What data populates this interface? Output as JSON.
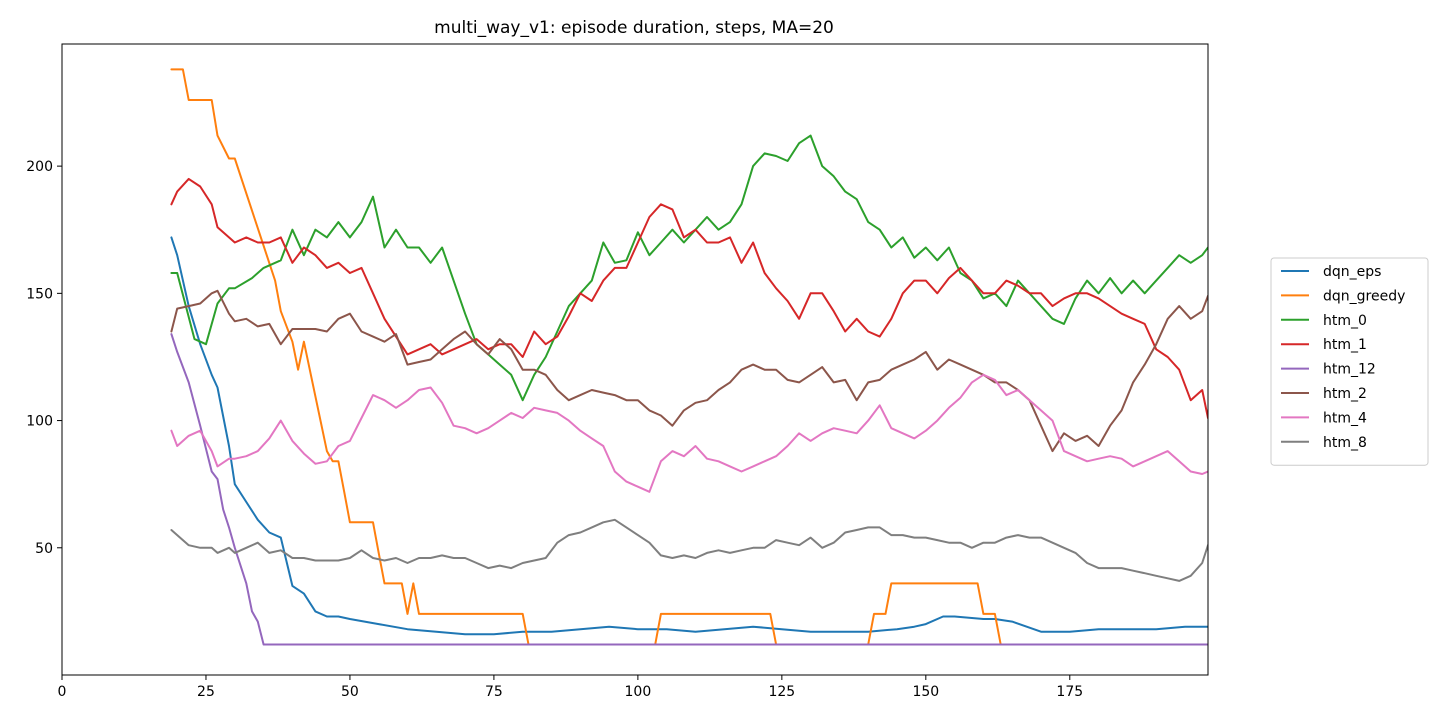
{
  "chart_data": {
    "type": "line",
    "title": "multi_way_v1: episode duration, steps, MA=20",
    "xlabel": "",
    "ylabel": "",
    "xlim": [
      0,
      199
    ],
    "ylim": [
      0,
      248
    ],
    "x_ticks": [
      0,
      25,
      50,
      75,
      100,
      125,
      150,
      175
    ],
    "y_ticks": [
      50,
      100,
      150,
      200
    ],
    "grid": false,
    "legend_position": "right",
    "series": [
      {
        "name": "dqn_eps",
        "color": "#1f77b4",
        "x": [
          19,
          20,
          22,
          24,
          26,
          27,
          29,
          30,
          32,
          34,
          36,
          38,
          40,
          42,
          44,
          46,
          48,
          50,
          55,
          60,
          65,
          70,
          75,
          80,
          85,
          90,
          95,
          100,
          105,
          110,
          115,
          120,
          125,
          130,
          135,
          140,
          145,
          148,
          150,
          153,
          155,
          160,
          162,
          165,
          170,
          175,
          180,
          185,
          190,
          195,
          199
        ],
        "y": [
          172,
          165,
          145,
          130,
          118,
          113,
          90,
          75,
          68,
          61,
          56,
          54,
          35,
          32,
          25,
          23,
          23,
          22,
          20,
          18,
          17,
          16,
          16,
          17,
          17,
          18,
          19,
          18,
          18,
          17,
          18,
          19,
          18,
          17,
          17,
          17,
          18,
          19,
          20,
          23,
          23,
          22,
          22,
          21,
          17,
          17,
          18,
          18,
          18,
          19,
          19
        ]
      },
      {
        "name": "dqn_greedy",
        "color": "#ff7f0e",
        "x": [
          19,
          21,
          22,
          26,
          27,
          29,
          30,
          37,
          38,
          40,
          41,
          42,
          46,
          47,
          48,
          49,
          50,
          54,
          55,
          56,
          59,
          60,
          61,
          62,
          80,
          81,
          103,
          104,
          123,
          124,
          140,
          141,
          143,
          144,
          159,
          160,
          162,
          163,
          199
        ],
        "y": [
          238,
          238,
          226,
          226,
          212,
          203,
          203,
          155,
          143,
          131,
          120,
          131,
          88,
          84,
          84,
          72,
          60,
          60,
          48,
          36,
          36,
          24,
          36,
          24,
          24,
          12,
          12,
          24,
          24,
          12,
          12,
          24,
          24,
          36,
          36,
          24,
          24,
          12,
          12
        ]
      },
      {
        "name": "htm_0",
        "color": "#2ca02c",
        "x": [
          19,
          20,
          23,
          25,
          27,
          29,
          30,
          33,
          35,
          38,
          40,
          42,
          44,
          46,
          48,
          50,
          52,
          54,
          56,
          58,
          60,
          62,
          64,
          66,
          70,
          72,
          74,
          76,
          78,
          80,
          82,
          84,
          86,
          88,
          90,
          92,
          94,
          96,
          98,
          100,
          102,
          104,
          106,
          108,
          110,
          112,
          114,
          116,
          118,
          120,
          122,
          124,
          126,
          128,
          130,
          132,
          134,
          136,
          138,
          140,
          142,
          144,
          146,
          148,
          150,
          152,
          154,
          156,
          158,
          160,
          162,
          164,
          166,
          168,
          172,
          174,
          176,
          178,
          180,
          182,
          184,
          186,
          188,
          190,
          192,
          194,
          196,
          198,
          199
        ],
        "y": [
          158,
          158,
          132,
          130,
          146,
          152,
          152,
          156,
          160,
          163,
          175,
          165,
          175,
          172,
          178,
          172,
          178,
          188,
          168,
          175,
          168,
          168,
          162,
          168,
          142,
          130,
          126,
          122,
          118,
          108,
          118,
          125,
          135,
          145,
          150,
          155,
          170,
          162,
          163,
          174,
          165,
          170,
          175,
          170,
          175,
          180,
          175,
          178,
          185,
          200,
          205,
          204,
          202,
          209,
          212,
          200,
          196,
          190,
          187,
          178,
          175,
          168,
          172,
          164,
          168,
          163,
          168,
          158,
          155,
          148,
          150,
          145,
          155,
          150,
          140,
          138,
          148,
          155,
          150,
          156,
          150,
          155,
          150,
          155,
          160,
          165,
          162,
          165,
          168
        ]
      },
      {
        "name": "htm_1",
        "color": "#d62728",
        "x": [
          19,
          20,
          22,
          24,
          26,
          27,
          29,
          30,
          32,
          34,
          36,
          38,
          40,
          42,
          44,
          46,
          48,
          50,
          52,
          54,
          56,
          58,
          60,
          62,
          64,
          66,
          68,
          70,
          72,
          74,
          76,
          78,
          80,
          82,
          84,
          86,
          88,
          90,
          92,
          94,
          96,
          98,
          100,
          102,
          104,
          106,
          108,
          110,
          112,
          114,
          116,
          118,
          120,
          122,
          124,
          126,
          128,
          130,
          132,
          134,
          136,
          138,
          140,
          142,
          144,
          146,
          148,
          150,
          152,
          154,
          156,
          158,
          160,
          162,
          164,
          166,
          168,
          170,
          172,
          174,
          176,
          178,
          180,
          182,
          184,
          186,
          188,
          190,
          192,
          194,
          196,
          198,
          199
        ],
        "y": [
          185,
          190,
          195,
          192,
          185,
          176,
          172,
          170,
          172,
          170,
          170,
          172,
          162,
          168,
          165,
          160,
          162,
          158,
          160,
          150,
          140,
          133,
          126,
          128,
          130,
          126,
          128,
          130,
          132,
          128,
          130,
          130,
          125,
          135,
          130,
          133,
          141,
          150,
          147,
          155,
          160,
          160,
          170,
          180,
          185,
          183,
          172,
          175,
          170,
          170,
          172,
          162,
          170,
          158,
          152,
          147,
          140,
          150,
          150,
          143,
          135,
          140,
          135,
          133,
          140,
          150,
          155,
          155,
          150,
          156,
          160,
          155,
          150,
          150,
          155,
          153,
          150,
          150,
          145,
          148,
          150,
          150,
          148,
          145,
          142,
          140,
          138,
          128,
          125,
          120,
          108,
          112,
          101
        ]
      },
      {
        "name": "htm_12",
        "color": "#9467bd",
        "x": [
          19,
          20,
          22,
          24,
          26,
          27,
          28,
          29,
          30,
          32,
          33,
          34,
          35,
          199
        ],
        "y": [
          134,
          127,
          115,
          98,
          80,
          77,
          65,
          58,
          50,
          36,
          25,
          21,
          12,
          12
        ]
      },
      {
        "name": "htm_2",
        "color": "#8c564b",
        "x": [
          19,
          20,
          22,
          24,
          26,
          27,
          29,
          30,
          32,
          34,
          36,
          38,
          40,
          42,
          44,
          46,
          48,
          50,
          52,
          54,
          56,
          58,
          60,
          62,
          64,
          66,
          68,
          70,
          72,
          74,
          76,
          78,
          80,
          82,
          84,
          86,
          88,
          90,
          92,
          94,
          96,
          98,
          100,
          102,
          104,
          106,
          108,
          110,
          112,
          114,
          116,
          118,
          120,
          122,
          124,
          126,
          128,
          130,
          132,
          134,
          136,
          138,
          140,
          142,
          144,
          146,
          148,
          150,
          152,
          154,
          156,
          158,
          160,
          162,
          164,
          166,
          168,
          170,
          172,
          174,
          176,
          178,
          180,
          182,
          184,
          186,
          188,
          190,
          192,
          194,
          196,
          198,
          199
        ],
        "y": [
          135,
          144,
          145,
          146,
          150,
          151,
          142,
          139,
          140,
          137,
          138,
          130,
          136,
          136,
          136,
          135,
          140,
          142,
          135,
          133,
          131,
          134,
          122,
          123,
          124,
          128,
          132,
          135,
          130,
          126,
          132,
          128,
          120,
          120,
          118,
          112,
          108,
          110,
          112,
          111,
          110,
          108,
          108,
          104,
          102,
          98,
          104,
          107,
          108,
          112,
          115,
          120,
          122,
          120,
          120,
          116,
          115,
          118,
          121,
          115,
          116,
          108,
          115,
          116,
          120,
          122,
          124,
          127,
          120,
          124,
          122,
          120,
          118,
          115,
          115,
          112,
          108,
          98,
          88,
          95,
          92,
          94,
          90,
          98,
          104,
          115,
          122,
          130,
          140,
          145,
          140,
          143,
          149
        ]
      },
      {
        "name": "htm_4",
        "color": "#e377c2",
        "x": [
          19,
          20,
          22,
          24,
          26,
          27,
          29,
          30,
          32,
          34,
          36,
          38,
          40,
          42,
          44,
          46,
          48,
          50,
          52,
          54,
          56,
          58,
          60,
          62,
          64,
          66,
          68,
          70,
          72,
          74,
          76,
          78,
          80,
          82,
          84,
          86,
          88,
          90,
          92,
          94,
          96,
          98,
          100,
          102,
          104,
          106,
          108,
          110,
          112,
          114,
          116,
          118,
          120,
          122,
          124,
          126,
          128,
          130,
          132,
          134,
          136,
          138,
          140,
          142,
          144,
          146,
          148,
          150,
          152,
          154,
          156,
          158,
          160,
          162,
          164,
          166,
          168,
          170,
          172,
          174,
          176,
          178,
          180,
          182,
          184,
          186,
          188,
          190,
          192,
          194,
          196,
          198,
          199
        ],
        "y": [
          96,
          90,
          94,
          96,
          88,
          82,
          85,
          85,
          86,
          88,
          93,
          100,
          92,
          87,
          83,
          84,
          90,
          92,
          101,
          110,
          108,
          105,
          108,
          112,
          113,
          107,
          98,
          97,
          95,
          97,
          100,
          103,
          101,
          105,
          104,
          103,
          100,
          96,
          93,
          90,
          80,
          76,
          74,
          72,
          84,
          88,
          86,
          90,
          85,
          84,
          82,
          80,
          82,
          84,
          86,
          90,
          95,
          92,
          95,
          97,
          96,
          95,
          100,
          106,
          97,
          95,
          93,
          96,
          100,
          105,
          109,
          115,
          118,
          116,
          110,
          112,
          108,
          104,
          100,
          88,
          86,
          84,
          85,
          86,
          85,
          82,
          84,
          86,
          88,
          84,
          80,
          79,
          80
        ]
      },
      {
        "name": "htm_8",
        "color": "#7f7f7f",
        "x": [
          19,
          20,
          22,
          24,
          26,
          27,
          29,
          30,
          32,
          34,
          36,
          38,
          40,
          42,
          44,
          46,
          48,
          50,
          52,
          54,
          56,
          58,
          60,
          62,
          64,
          66,
          68,
          70,
          72,
          74,
          76,
          78,
          80,
          82,
          84,
          86,
          88,
          90,
          92,
          94,
          96,
          98,
          100,
          102,
          104,
          106,
          108,
          110,
          112,
          114,
          116,
          118,
          120,
          122,
          124,
          126,
          128,
          130,
          132,
          134,
          136,
          138,
          140,
          142,
          144,
          146,
          148,
          150,
          152,
          154,
          156,
          158,
          160,
          162,
          164,
          166,
          168,
          170,
          172,
          174,
          176,
          178,
          180,
          182,
          184,
          186,
          188,
          190,
          192,
          194,
          196,
          198,
          199
        ],
        "y": [
          57,
          55,
          51,
          50,
          50,
          48,
          50,
          48,
          50,
          52,
          48,
          49,
          46,
          46,
          45,
          45,
          45,
          46,
          49,
          46,
          45,
          46,
          44,
          46,
          46,
          47,
          46,
          46,
          44,
          42,
          43,
          42,
          44,
          45,
          46,
          52,
          55,
          56,
          58,
          60,
          61,
          58,
          55,
          52,
          47,
          46,
          47,
          46,
          48,
          49,
          48,
          49,
          50,
          50,
          53,
          52,
          51,
          54,
          50,
          52,
          56,
          57,
          58,
          58,
          55,
          55,
          54,
          54,
          53,
          52,
          52,
          50,
          52,
          52,
          54,
          55,
          54,
          54,
          52,
          50,
          48,
          44,
          42,
          42,
          42,
          41,
          40,
          39,
          38,
          37,
          39,
          44,
          51
        ]
      }
    ]
  }
}
